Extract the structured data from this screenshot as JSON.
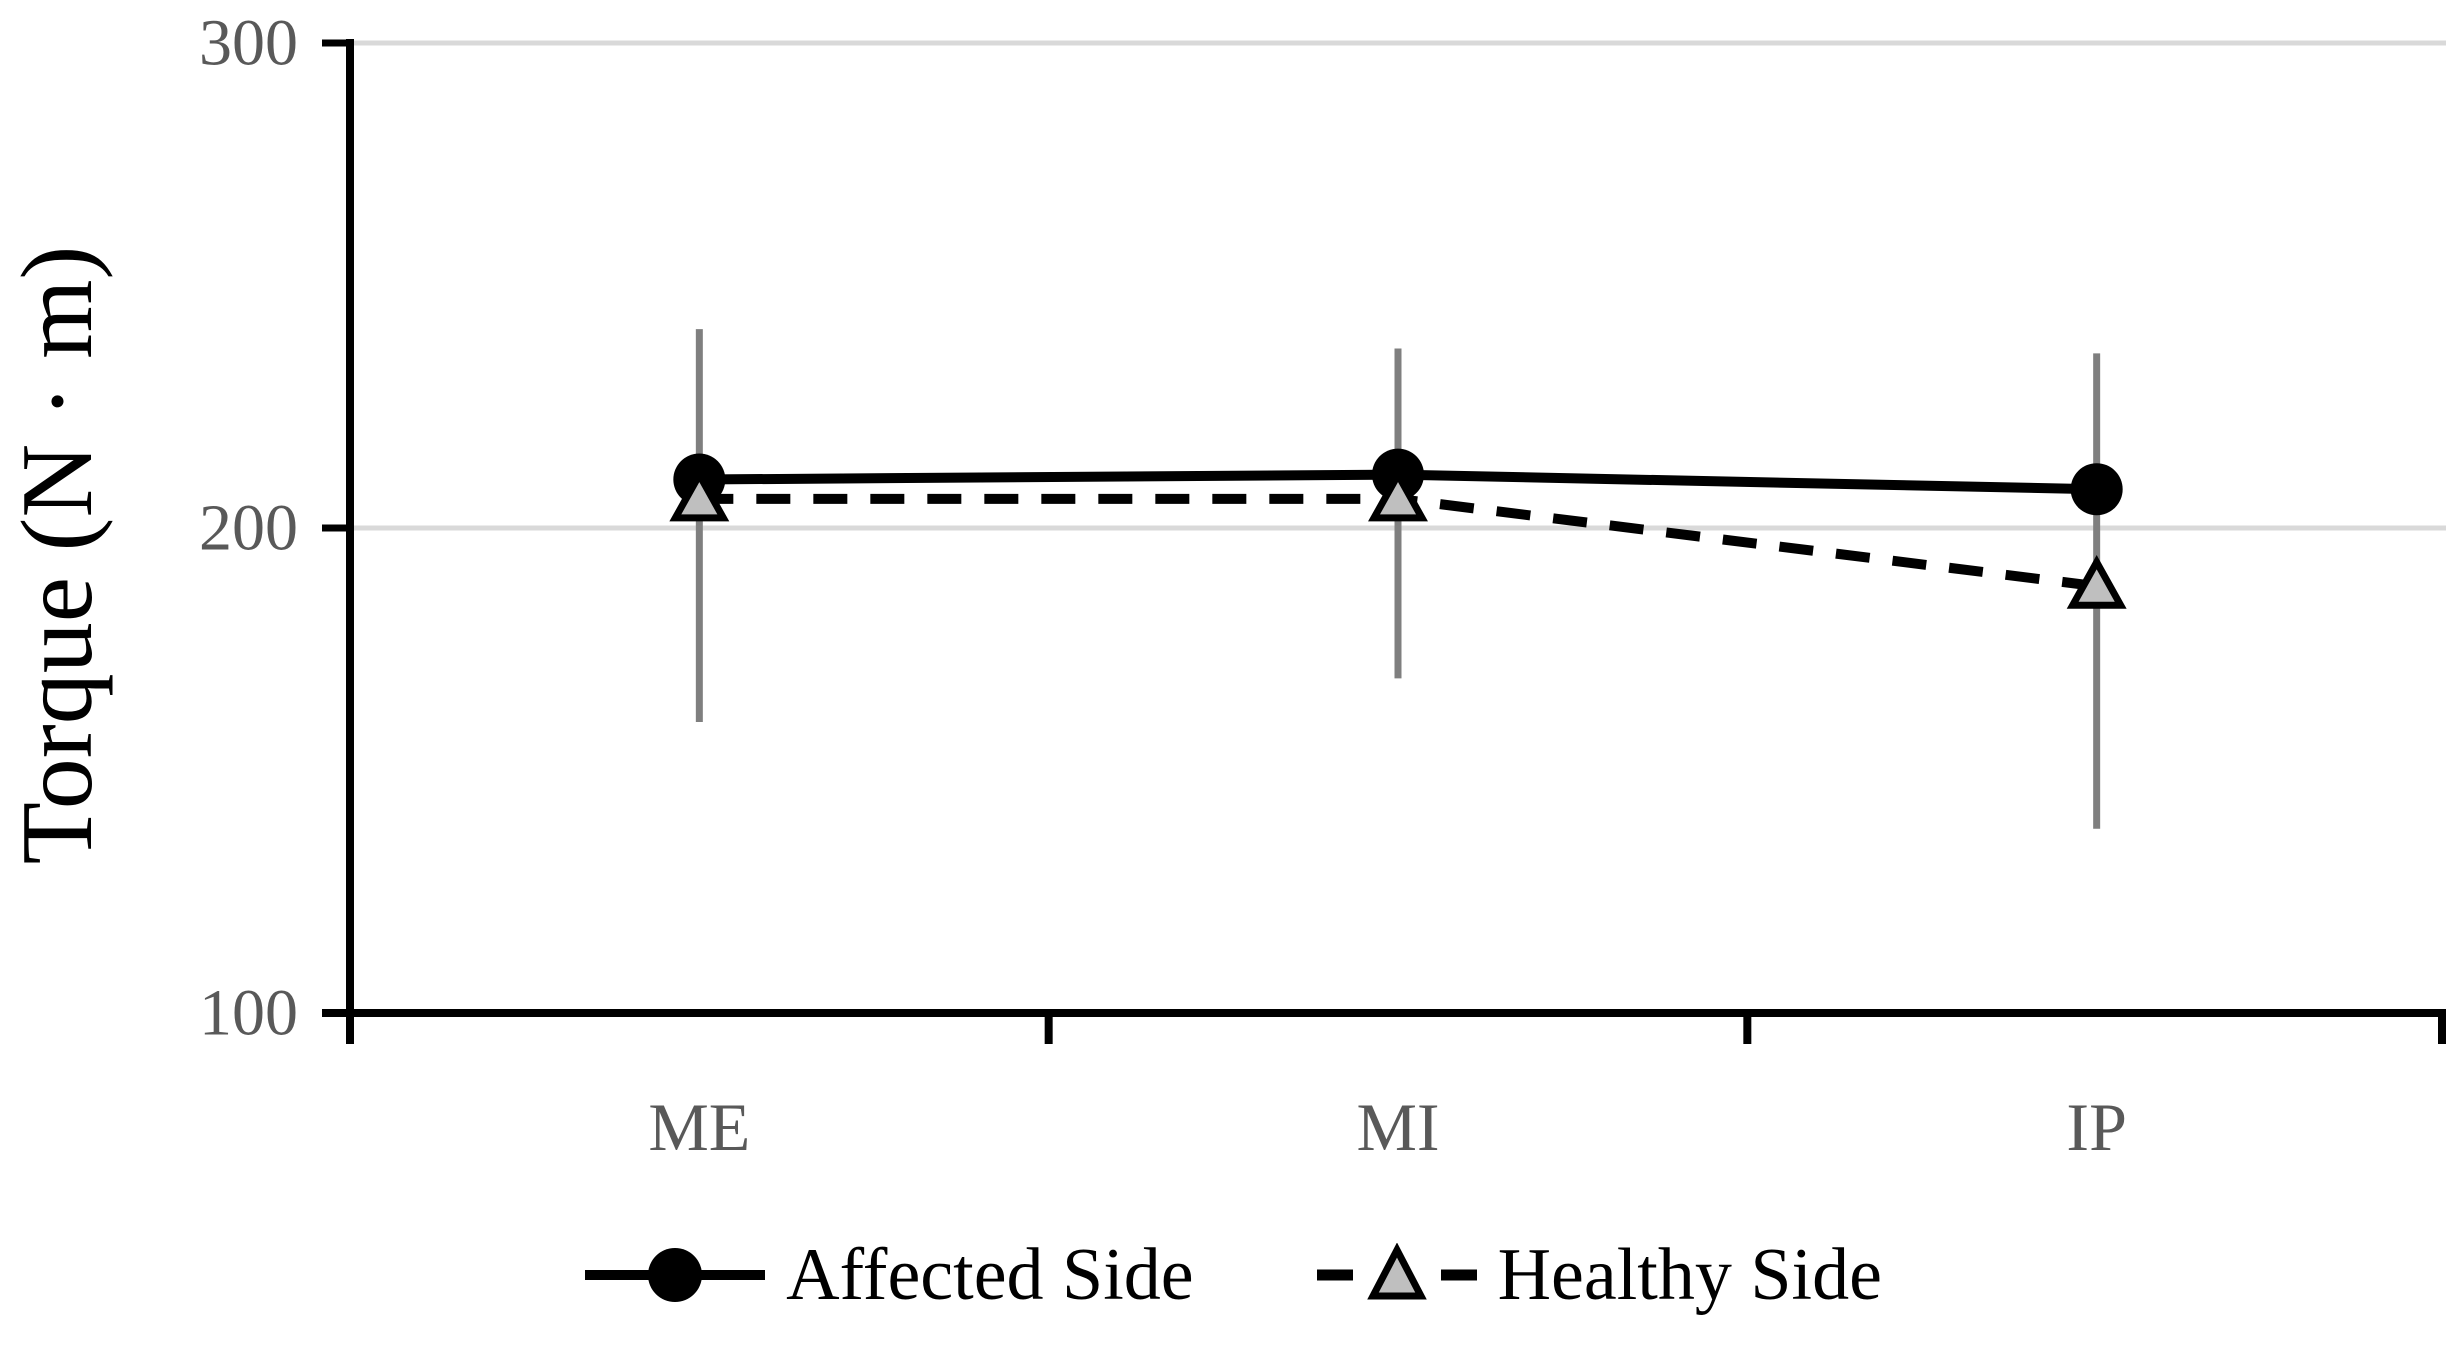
{
  "chart_data": {
    "type": "line",
    "title": "",
    "xlabel": "",
    "ylabel": "Torque (N · m)",
    "categories": [
      "ME",
      "MI",
      "IP"
    ],
    "y_ticks": [
      300,
      200,
      100
    ],
    "ylim": [
      100,
      300
    ],
    "gridlines_at": [
      300,
      200
    ],
    "grid": true,
    "series": [
      {
        "name": "Affected Side",
        "marker": "circle",
        "line_style": "solid",
        "line_color": "#000000",
        "marker_fill": "#000000",
        "marker_stroke": "#000000",
        "values": [
          210,
          211,
          208
        ]
      },
      {
        "name": "Healthy Side",
        "marker": "triangle",
        "line_style": "dashed",
        "line_color": "#000000",
        "marker_fill": "#bfbfbf",
        "marker_stroke": "#000000",
        "values": [
          206,
          206,
          188
        ]
      }
    ],
    "error_bars": {
      "color": "#7f7f7f",
      "per_category": [
        {
          "category": "ME",
          "top": 241,
          "bottom": 160
        },
        {
          "category": "MI",
          "top": 237,
          "bottom": 169
        },
        {
          "category": "IP",
          "top": 236,
          "bottom": 138
        }
      ]
    },
    "legend": {
      "position": "bottom",
      "entries": [
        "Affected Side",
        "Healthy Side"
      ]
    }
  },
  "colors": {
    "axis": "#000000",
    "gridline": "#d9d9d9",
    "tick_label": "#595959",
    "error_bar": "#7f7f7f",
    "triangle_fill": "#bfbfbf",
    "background": "#ffffff"
  }
}
